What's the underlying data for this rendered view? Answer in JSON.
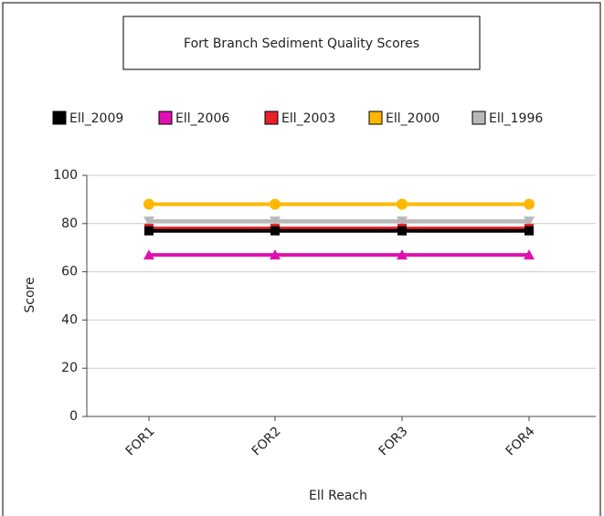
{
  "chart_data": {
    "type": "line",
    "title": "Fort Branch Sediment Quality Scores",
    "xlabel": "Ell Reach",
    "ylabel": "Score",
    "categories": [
      "FOR1",
      "FOR2",
      "FOR3",
      "FOR4"
    ],
    "series": [
      {
        "name": "Ell_2009",
        "color": "#000000",
        "marker": "square",
        "values": [
          77,
          77,
          77,
          77
        ]
      },
      {
        "name": "Ell_2006",
        "color": "#e010b0",
        "marker": "triangle",
        "values": [
          67,
          67,
          67,
          67
        ]
      },
      {
        "name": "Ell_2003",
        "color": "#e8202a",
        "marker": "square",
        "values": [
          78,
          78,
          78,
          78
        ]
      },
      {
        "name": "Ell_2000",
        "color": "#ffb800",
        "marker": "circle",
        "values": [
          88,
          88,
          88,
          88
        ]
      },
      {
        "name": "Ell_1996",
        "color": "#b8b8b8",
        "marker": "triangle-down",
        "values": [
          81,
          81,
          81,
          81
        ]
      }
    ],
    "ylim": [
      0,
      100
    ],
    "yticks": [
      0,
      20,
      40,
      60,
      80,
      100
    ],
    "grid": true
  }
}
